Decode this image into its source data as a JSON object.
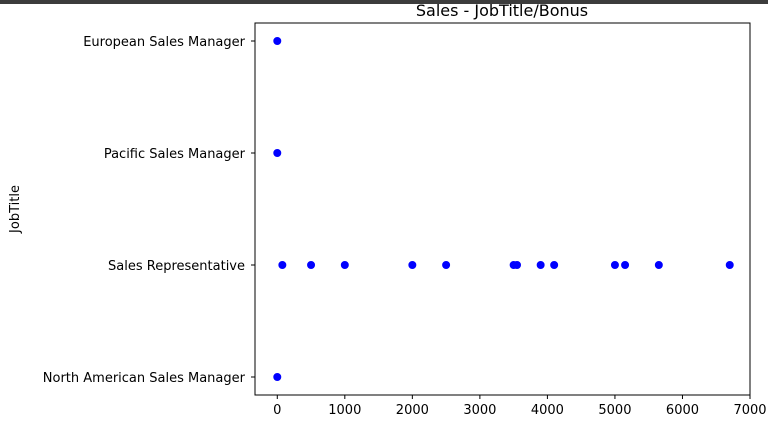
{
  "chart_data": {
    "type": "scatter",
    "title": "Sales - JobTitle/Bonus",
    "xlabel": "",
    "ylabel": "JobTitle",
    "xlim": [
      -330,
      7000
    ],
    "x_ticks": [
      0,
      1000,
      2000,
      3000,
      4000,
      5000,
      6000,
      7000
    ],
    "categories": [
      "European Sales Manager",
      "Pacific Sales Manager",
      "Sales Representative",
      "North American Sales Manager"
    ],
    "marker_color": "#0000ff",
    "grid": false,
    "points": [
      {
        "x": 0,
        "y": "European Sales Manager"
      },
      {
        "x": 0,
        "y": "Pacific Sales Manager"
      },
      {
        "x": 0,
        "y": "North American Sales Manager"
      },
      {
        "x": 75,
        "y": "Sales Representative"
      },
      {
        "x": 500,
        "y": "Sales Representative"
      },
      {
        "x": 1000,
        "y": "Sales Representative"
      },
      {
        "x": 2000,
        "y": "Sales Representative"
      },
      {
        "x": 2500,
        "y": "Sales Representative"
      },
      {
        "x": 3500,
        "y": "Sales Representative"
      },
      {
        "x": 3550,
        "y": "Sales Representative"
      },
      {
        "x": 3900,
        "y": "Sales Representative"
      },
      {
        "x": 4100,
        "y": "Sales Representative"
      },
      {
        "x": 5000,
        "y": "Sales Representative"
      },
      {
        "x": 5150,
        "y": "Sales Representative"
      },
      {
        "x": 5650,
        "y": "Sales Representative"
      },
      {
        "x": 6700,
        "y": "Sales Representative"
      }
    ]
  }
}
